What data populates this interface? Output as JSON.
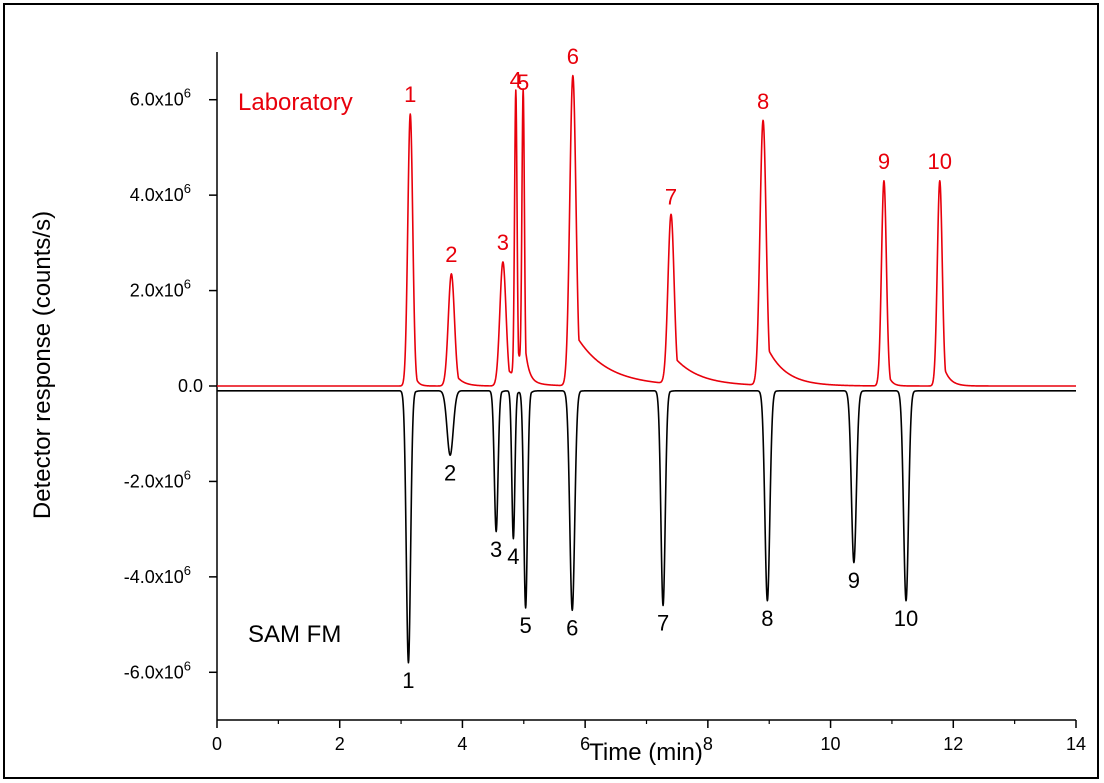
{
  "chart_data": {
    "type": "line",
    "title": "",
    "xlabel": "Time (min)",
    "ylabel": "Detector response (counts/s)",
    "xlim": [
      0,
      14
    ],
    "ylim": [
      -7000000,
      7000000
    ],
    "x_ticks": [
      0,
      2,
      4,
      6,
      8,
      10,
      12,
      14
    ],
    "x_tick_labels": [
      "0",
      "2",
      "4",
      "6",
      "8",
      "10",
      "12",
      "14"
    ],
    "y_ticks": [
      -6000000,
      -4000000,
      -2000000,
      0,
      2000000,
      4000000,
      6000000
    ],
    "y_tick_labels": [
      {
        "mantissa": "-6.0x10",
        "exp": "6"
      },
      {
        "mantissa": "-4.0x10",
        "exp": "6"
      },
      {
        "mantissa": "-2.0x10",
        "exp": "6"
      },
      {
        "mantissa": "0.0",
        "exp": ""
      },
      {
        "mantissa": "2.0x10",
        "exp": "6"
      },
      {
        "mantissa": "4.0x10",
        "exp": "6"
      },
      {
        "mantissa": "6.0x10",
        "exp": "6"
      }
    ],
    "grid": false,
    "series": [
      {
        "name": "Laboratory",
        "color": "#e8000b",
        "peaks": [
          {
            "label": "1",
            "t": 3.15,
            "value": 5700000,
            "width": 0.04,
            "tail": 0.05
          },
          {
            "label": "2",
            "t": 3.82,
            "value": 2350000,
            "width": 0.05,
            "tail": 0.12
          },
          {
            "label": "3",
            "t": 4.66,
            "value": 2600000,
            "width": 0.05,
            "tail": 0.25
          },
          {
            "label": "4",
            "t": 4.87,
            "value": 6000000,
            "width": 0.02,
            "tail": 0.06
          },
          {
            "label": "5",
            "t": 4.99,
            "value": 5950000,
            "width": 0.02,
            "tail": 0.06
          },
          {
            "label": "6",
            "t": 5.8,
            "value": 6500000,
            "width": 0.05,
            "tail": 0.5
          },
          {
            "label": "7",
            "t": 7.4,
            "value": 3550000,
            "width": 0.05,
            "tail": 0.4
          },
          {
            "label": "8",
            "t": 8.9,
            "value": 5550000,
            "width": 0.05,
            "tail": 0.3
          },
          {
            "label": "9",
            "t": 10.87,
            "value": 4300000,
            "width": 0.04,
            "tail": 0.06
          },
          {
            "label": "10",
            "t": 11.78,
            "value": 4300000,
            "width": 0.04,
            "tail": 0.1
          }
        ]
      },
      {
        "name": "SAM FM",
        "color": "#000000",
        "baseline": -100000,
        "peaks": [
          {
            "label": "1",
            "t": 3.12,
            "value": -5700000,
            "width": 0.035,
            "tail": 0.03
          },
          {
            "label": "2",
            "t": 3.8,
            "value": -1350000,
            "width": 0.05,
            "tail": 0.03
          },
          {
            "label": "3",
            "t": 4.55,
            "value": -2950000,
            "width": 0.03,
            "tail": 0.03
          },
          {
            "label": "4",
            "t": 4.83,
            "value": -3100000,
            "width": 0.025,
            "tail": 0.03
          },
          {
            "label": "5",
            "t": 5.03,
            "value": -4550000,
            "width": 0.03,
            "tail": 0.03
          },
          {
            "label": "6",
            "t": 5.79,
            "value": -4600000,
            "width": 0.04,
            "tail": 0.03
          },
          {
            "label": "7",
            "t": 7.27,
            "value": -4500000,
            "width": 0.035,
            "tail": 0.03
          },
          {
            "label": "8",
            "t": 8.97,
            "value": -4400000,
            "width": 0.04,
            "tail": 0.03
          },
          {
            "label": "9",
            "t": 10.38,
            "value": -3600000,
            "width": 0.04,
            "tail": 0.03
          },
          {
            "label": "10",
            "t": 11.23,
            "value": -4400000,
            "width": 0.04,
            "tail": 0.03
          }
        ]
      }
    ],
    "annotations": [
      {
        "text": "Laboratory",
        "series": 0
      },
      {
        "text": "SAM FM",
        "series": 1
      }
    ]
  }
}
